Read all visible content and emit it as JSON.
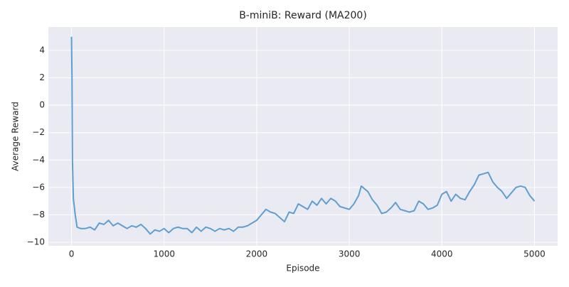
{
  "chart_data": {
    "type": "line",
    "title": "B-miniB: Reward (MA200)",
    "x_label": "Episode",
    "y_label": "Average Reward",
    "x": [
      0,
      5,
      10,
      20,
      40,
      60,
      100,
      150,
      200,
      250,
      300,
      350,
      400,
      450,
      500,
      550,
      600,
      650,
      700,
      750,
      800,
      850,
      900,
      950,
      1000,
      1050,
      1100,
      1150,
      1200,
      1250,
      1300,
      1350,
      1400,
      1450,
      1500,
      1550,
      1600,
      1650,
      1700,
      1750,
      1800,
      1850,
      1900,
      1950,
      2000,
      2050,
      2100,
      2150,
      2200,
      2250,
      2300,
      2350,
      2400,
      2450,
      2500,
      2550,
      2600,
      2650,
      2700,
      2750,
      2800,
      2850,
      2900,
      2950,
      3000,
      3050,
      3100,
      3130,
      3200,
      3250,
      3300,
      3350,
      3400,
      3450,
      3500,
      3550,
      3600,
      3650,
      3700,
      3750,
      3800,
      3850,
      3900,
      3950,
      4000,
      4050,
      4100,
      4150,
      4200,
      4250,
      4300,
      4350,
      4400,
      4450,
      4500,
      4550,
      4600,
      4650,
      4700,
      4750,
      4800,
      4850,
      4900,
      4950,
      5000
    ],
    "series": [
      {
        "name": "Reward (MA200)",
        "color": "#5f9ed1",
        "values": [
          5,
          2,
          -4,
          -6.8,
          -8,
          -8.9,
          -9,
          -9,
          -8.9,
          -9.1,
          -8.6,
          -8.7,
          -8.4,
          -8.8,
          -8.6,
          -8.8,
          -9,
          -8.8,
          -8.9,
          -8.7,
          -9,
          -9.4,
          -9.1,
          -9.2,
          -9,
          -9.3,
          -9,
          -8.9,
          -9,
          -9,
          -9.3,
          -8.9,
          -9.2,
          -8.9,
          -9,
          -9.2,
          -9,
          -9.1,
          -9,
          -9.2,
          -8.9,
          -8.9,
          -8.8,
          -8.6,
          -8.4,
          -8,
          -7.6,
          -7.8,
          -7.9,
          -8.2,
          -8.5,
          -7.8,
          -7.9,
          -7.2,
          -7.4,
          -7.6,
          -7,
          -7.3,
          -6.8,
          -7.2,
          -6.8,
          -7,
          -7.4,
          -7.5,
          -7.6,
          -7.2,
          -6.6,
          -5.9,
          -6.3,
          -6.9,
          -7.3,
          -7.9,
          -7.8,
          -7.5,
          -7.1,
          -7.6,
          -7.7,
          -7.8,
          -7.7,
          -7,
          -7.2,
          -7.6,
          -7.5,
          -7.3,
          -6.5,
          -6.3,
          -7,
          -6.5,
          -6.8,
          -6.9,
          -6.3,
          -5.8,
          -5.1,
          -5,
          -4.9,
          -5.6,
          -6,
          -6.3,
          -6.8,
          -6.4,
          -6,
          -5.9,
          -6,
          -6.6,
          -7
        ]
      }
    ],
    "xlim": [
      -250,
      5250
    ],
    "ylim": [
      -10.26,
      5.71
    ],
    "xticks": [
      0,
      1000,
      2000,
      3000,
      4000,
      5000
    ],
    "yticks": [
      {
        "value": -10,
        "label": "−10"
      },
      {
        "value": -8,
        "label": "−8"
      },
      {
        "value": -6,
        "label": "−6"
      },
      {
        "value": -4,
        "label": "−4"
      },
      {
        "value": -2,
        "label": "−2"
      },
      0,
      2,
      4
    ],
    "grid": true
  }
}
